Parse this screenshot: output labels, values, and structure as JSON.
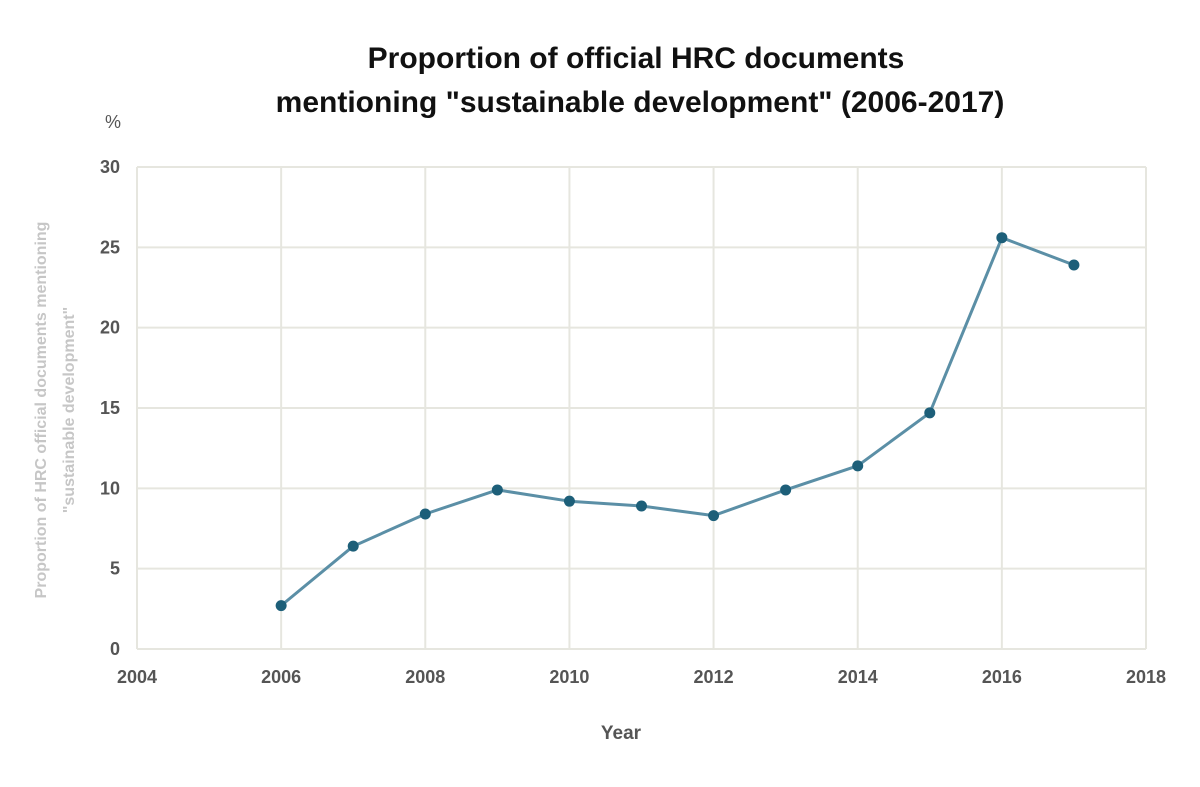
{
  "chart_data": {
    "type": "line",
    "title_lines": [
      "Proportion of official HRC documents",
      "mentioning \"sustainable development\" (2006-2017)"
    ],
    "unit_label": "%",
    "xlabel": "Year",
    "ylabel_lines": [
      "Proportion of HRC official documents mentioning",
      "\"sustainable development\""
    ],
    "xlim": [
      2004,
      2018
    ],
    "ylim": [
      0,
      30
    ],
    "x_ticks": [
      2004,
      2006,
      2008,
      2010,
      2012,
      2014,
      2016,
      2018
    ],
    "y_ticks": [
      0,
      5,
      10,
      15,
      20,
      25,
      30
    ],
    "grid": true,
    "series": [
      {
        "x": [
          2006,
          2007,
          2008,
          2009,
          2010,
          2011,
          2012,
          2013,
          2014,
          2015,
          2016,
          2017
        ],
        "y": [
          2.7,
          6.4,
          8.4,
          9.9,
          9.2,
          8.9,
          8.3,
          9.9,
          11.4,
          14.7,
          25.6,
          23.9
        ],
        "line_color": "#5b8fa6",
        "marker_color": "#1d5f79"
      }
    ]
  }
}
